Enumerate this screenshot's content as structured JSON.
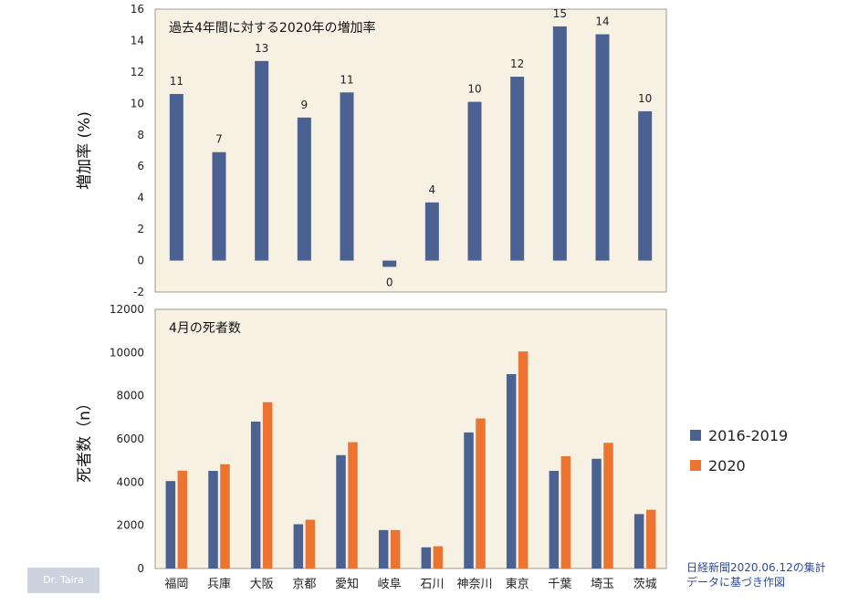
{
  "colors": {
    "plot_bg": "#f7f1e4",
    "plot_border": "#a09c8a",
    "series_2016_2019": "#4a6191",
    "series_2020": "#ed7330",
    "badge_bg": "#ccd3df",
    "source_text": "#2d4c9a"
  },
  "chart_data": [
    {
      "type": "bar",
      "title": "過去4年間に対する2020年の増加率",
      "ylabel": "増加率 (%)",
      "ylim": [
        -2,
        16
      ],
      "yticks": [
        -2,
        0,
        2,
        4,
        6,
        8,
        10,
        12,
        14,
        16
      ],
      "grid": false,
      "categories": [
        "福岡",
        "兵庫",
        "大阪",
        "京都",
        "愛知",
        "岐阜",
        "石川",
        "神奈川",
        "東京",
        "千葉",
        "埼玉",
        "茨城"
      ],
      "values": [
        10.6,
        6.9,
        12.7,
        9.1,
        10.7,
        -0.4,
        3.7,
        10.1,
        11.7,
        14.9,
        14.4,
        9.5
      ],
      "data_labels": [
        "11",
        "7",
        "13",
        "9",
        "11",
        "0",
        "4",
        "10",
        "12",
        "15",
        "14",
        "10"
      ],
      "color": "#4a6191"
    },
    {
      "type": "bar",
      "title": "4月の死者数",
      "ylabel": "死者数（n）",
      "ylim": [
        0,
        12000
      ],
      "yticks": [
        0,
        2000,
        4000,
        6000,
        8000,
        10000,
        12000
      ],
      "grid": false,
      "categories": [
        "福岡",
        "兵庫",
        "大阪",
        "京都",
        "愛知",
        "岐阜",
        "石川",
        "神奈川",
        "東京",
        "千葉",
        "埼玉",
        "茨城"
      ],
      "series": [
        {
          "name": "2016-2019",
          "color": "#4a6191",
          "values": [
            4050,
            4520,
            6800,
            2050,
            5250,
            1780,
            980,
            6300,
            9000,
            4520,
            5080,
            2520
          ]
        },
        {
          "name": "2020",
          "color": "#ed7330",
          "values": [
            4530,
            4830,
            7700,
            2260,
            5850,
            1780,
            1030,
            6950,
            10050,
            5200,
            5820,
            2720
          ]
        }
      ],
      "legend_position": "right"
    }
  ],
  "legend": [
    {
      "label": "2016-2019",
      "color": "#4a6191"
    },
    {
      "label": "2020",
      "color": "#ed7330"
    }
  ],
  "source_note": [
    "日経新聞2020.06.12の集計",
    "データに基づき作図"
  ],
  "badge": "Dr. Taira"
}
